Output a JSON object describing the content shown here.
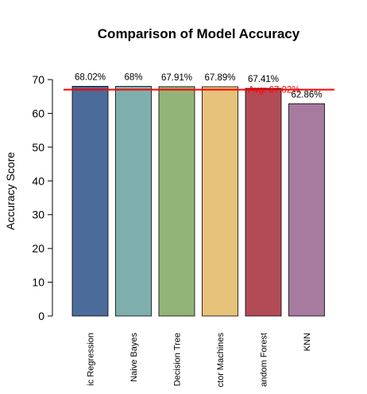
{
  "chart_data": {
    "type": "bar",
    "title": "Comparison of Model Accuracy",
    "xlabel": "",
    "ylabel": "Accuracy Score",
    "categories": [
      "ic Regression",
      "Naive Bayes",
      "Decision Tree",
      "ctor Machines",
      "andom Forest",
      "KNN"
    ],
    "values": [
      68.02,
      68,
      67.91,
      67.89,
      67.41,
      62.86
    ],
    "data_labels": [
      "68.02%",
      "68%",
      "67.91%",
      "67.89%",
      "67.41%",
      "62.86%"
    ],
    "bar_colors": [
      "#4b6c9b",
      "#7eafac",
      "#93b478",
      "#e6c27b",
      "#b34b57",
      "#a77b9f"
    ],
    "ylim": [
      0,
      70
    ],
    "yticks": [
      0,
      10,
      20,
      30,
      40,
      50,
      60,
      70
    ],
    "average": {
      "value": 67.02,
      "label": "Avg: 67.02%",
      "color": "#ff0000"
    },
    "grid": false,
    "legend": "none"
  }
}
